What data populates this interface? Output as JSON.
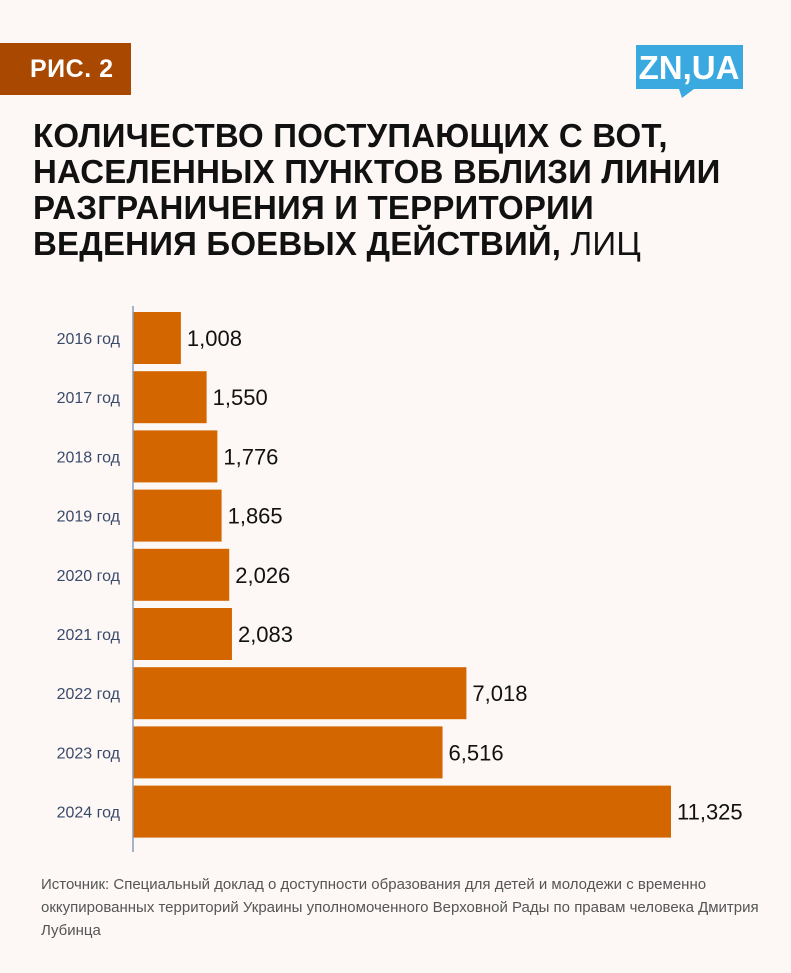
{
  "badge": "РИС. 2",
  "logo": {
    "text": "ZN,UA",
    "color": "#3aa9e0",
    "icon": "speech-bubble-logo"
  },
  "title": {
    "bold": "КОЛИЧЕСТВО ПОСТУПАЮЩИХ С ВОТ, НАСЕЛЕННЫХ ПУНКТОВ ВБЛИЗИ ЛИНИИ РАЗГРАНИЧЕНИЯ И ТЕРРИТОРИИ ВЕДЕНИЯ БОЕВЫХ ДЕЙСТВИЙ,",
    "light": " ЛИЦ"
  },
  "chart_data": {
    "type": "bar",
    "orientation": "horizontal",
    "categories": [
      "2016 год",
      "2017 год",
      "2018 год",
      "2019 год",
      "2020 год",
      "2021 год",
      "2022 год",
      "2023 год",
      "2024 год"
    ],
    "values": [
      1008,
      1550,
      1776,
      1865,
      2026,
      2083,
      7018,
      6516,
      11325
    ],
    "value_labels": [
      "1,008",
      "1,550",
      "1,776",
      "1,865",
      "2,026",
      "2,083",
      "7,018",
      "6,516",
      "11,325"
    ],
    "bar_color": "#d46600",
    "xlim": [
      0,
      11325
    ],
    "grid": false,
    "legend": "none"
  },
  "source": "Источник: Специальный доклад о доступности образования для детей и молодежи с временно оккупированных территорий Украины уполномоченного Верховной Рады по правам человека Дмитрия Лубинца"
}
